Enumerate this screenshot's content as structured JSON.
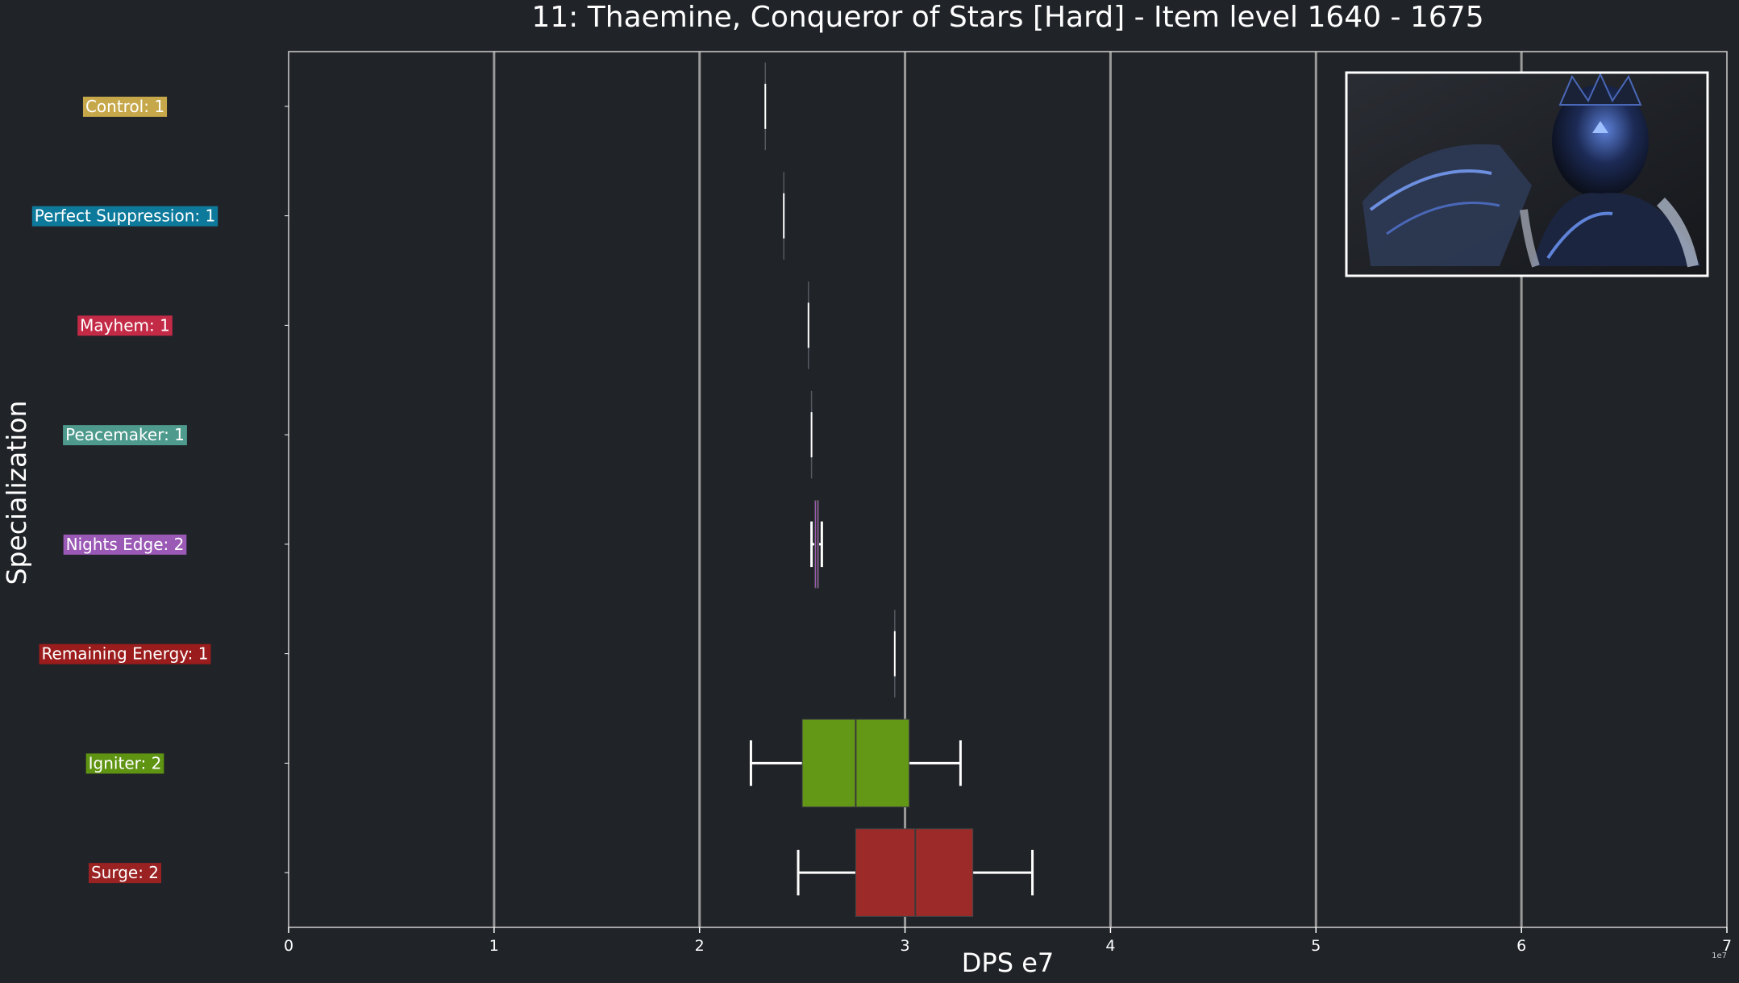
{
  "chart_data": {
    "type": "box",
    "title": "11: Thaemine, Conqueror of Stars [Hard] - Item level 1640 - 1675",
    "xlabel": "DPS e7",
    "ylabel": "Specialization",
    "x_offset_label": "1e7",
    "xlim": [
      0,
      7
    ],
    "xticks": [
      "0",
      "1",
      "2",
      "3",
      "4",
      "5",
      "6",
      "7"
    ],
    "grid": "vertical",
    "inset_image": "boss-portrait",
    "categories": [
      {
        "label": "Control: 1",
        "color": "#c6a84b",
        "min": 2.32,
        "q1": 2.32,
        "median": 2.32,
        "q3": 2.32,
        "max": 2.32,
        "box_color": "#c6a84b"
      },
      {
        "label": "Perfect Suppression: 1",
        "color": "#0e7a9b",
        "min": 2.41,
        "q1": 2.41,
        "median": 2.41,
        "q3": 2.41,
        "max": 2.41,
        "box_color": "#0e7a9b"
      },
      {
        "label": "Mayhem: 1",
        "color": "#c22a46",
        "min": 2.53,
        "q1": 2.53,
        "median": 2.53,
        "q3": 2.53,
        "max": 2.53,
        "box_color": "#c22a46"
      },
      {
        "label": "Peacemaker: 1",
        "color": "#4e9a8d",
        "min": 2.545,
        "q1": 2.545,
        "median": 2.545,
        "q3": 2.545,
        "max": 2.545,
        "box_color": "#4e9a8d"
      },
      {
        "label": "Nights Edge: 2",
        "color": "#9b59b6",
        "min": 2.545,
        "q1": 2.56,
        "median": 2.57,
        "q3": 2.58,
        "max": 2.595,
        "box_color": "#9b59b6"
      },
      {
        "label": "Remaining Energy: 1",
        "color": "#9b1c1c",
        "min": 2.95,
        "q1": 2.95,
        "median": 2.95,
        "q3": 2.95,
        "max": 2.95,
        "box_color": "#9b1c1c"
      },
      {
        "label": "Igniter: 2",
        "color": "#5f9412",
        "min": 2.25,
        "q1": 2.5,
        "median": 2.76,
        "q3": 3.02,
        "max": 3.27,
        "box_color": "#629816"
      },
      {
        "label": "Surge: 2",
        "color": "#9b2222",
        "min": 2.48,
        "q1": 2.76,
        "median": 3.05,
        "q3": 3.33,
        "max": 3.62,
        "box_color": "#9c2a29"
      }
    ]
  }
}
